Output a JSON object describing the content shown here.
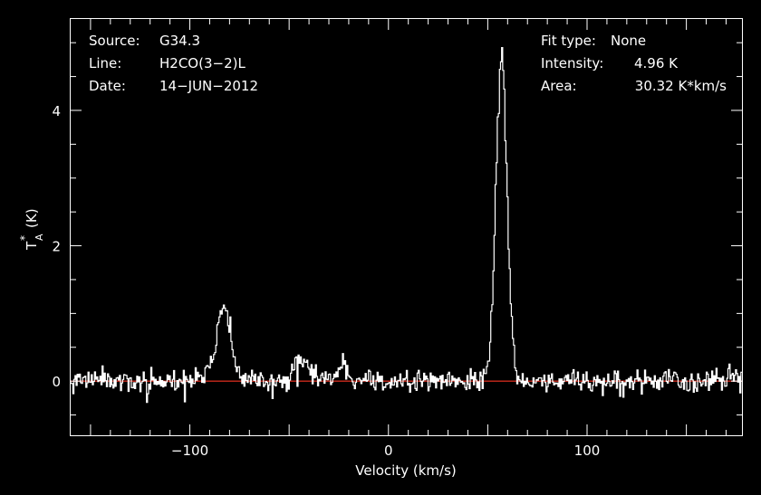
{
  "chart_data": {
    "type": "line",
    "xlabel": "Velocity (km/s)",
    "ylabel_main": "T",
    "ylabel_sup": "*",
    "ylabel_sub": "A",
    "ylabel_unit": "(K)",
    "xlim": [
      -160,
      178
    ],
    "ylim": [
      -0.8,
      5.35
    ],
    "xticks": [
      -100,
      0,
      100
    ],
    "xtick_labels": [
      "−100",
      "0",
      "100"
    ],
    "yticks": [
      0,
      2,
      4
    ],
    "ytick_labels": [
      "0",
      "2",
      "4"
    ],
    "baseline": 0,
    "baseline_color": "#cc2a1c",
    "line_color": "#ffffff",
    "background": "#000000",
    "noise_rms": 0.09,
    "components": [
      {
        "center": -83,
        "amplitude": 1.1,
        "fwhm": 8
      },
      {
        "center": -44,
        "amplitude": 0.32,
        "fwhm": 8
      },
      {
        "center": -23,
        "amplitude": 0.3,
        "fwhm": 4
      },
      {
        "center": 57,
        "amplitude": 4.85,
        "fwhm": 6.5
      }
    ],
    "annotations": {
      "source_label": "Source:",
      "source_value": "G34.3",
      "line_label": "Line:",
      "line_value": "H2CO(3−2)L",
      "date_label": "Date:",
      "date_value": "14−JUN−2012",
      "fit_label": "Fit type:",
      "fit_value": "None",
      "intensity_label": "Intensity:",
      "intensity_value": "4.96 K",
      "area_label": "Area:",
      "area_value": "30.32 K*km/s"
    }
  }
}
